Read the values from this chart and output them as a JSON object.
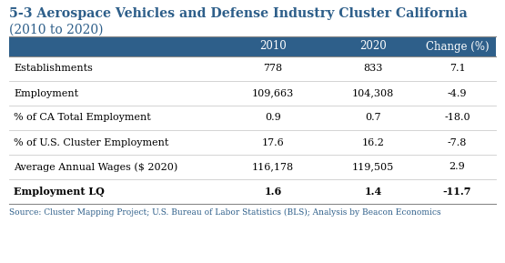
{
  "title_line1": "5-3 Aerospace Vehicles and Defense Industry Cluster California",
  "title_line2": "(2010 to 2020)",
  "header": [
    "",
    "2010",
    "2020",
    "Change (%)"
  ],
  "rows": [
    [
      "Establishments",
      "778",
      "833",
      "7.1",
      false
    ],
    [
      "Employment",
      "109,663",
      "104,308",
      "-4.9",
      false
    ],
    [
      "% of CA Total Employment",
      "0.9",
      "0.7",
      "-18.0",
      false
    ],
    [
      "% of U.S. Cluster Employment",
      "17.6",
      "16.2",
      "-7.8",
      false
    ],
    [
      "Average Annual Wages ($ 2020)",
      "116,178",
      "119,505",
      "2.9",
      false
    ],
    [
      "Employment LQ",
      "1.6",
      "1.4",
      "-11.7",
      true
    ]
  ],
  "header_bg": "#2E5F8A",
  "header_fg": "#FFFFFF",
  "title_color": "#2E5F8A",
  "source_text": "Source: Cluster Mapping Project; U.S. Bureau of Labor Statistics (BLS); Analysis by Beacon Economics",
  "source_color": "#2E5F8A",
  "fig_width": 5.55,
  "fig_height": 2.89,
  "dpi": 100
}
